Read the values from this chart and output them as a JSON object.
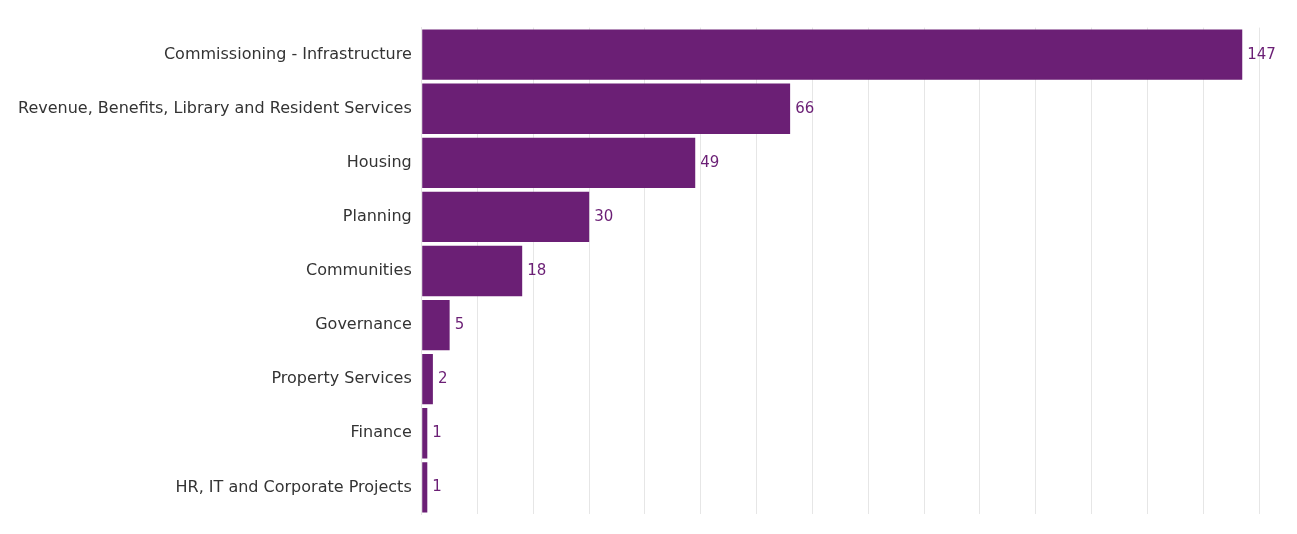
{
  "chart_data": {
    "type": "bar",
    "orientation": "horizontal",
    "categories": [
      "Commissioning - Infrastructure",
      "Revenue, Benefits, Library and Resident Services",
      "Housing",
      "Planning",
      "Communities",
      "Governance",
      "Property Services",
      "Finance",
      "HR, IT and Corporate Projects"
    ],
    "values": [
      147,
      66,
      49,
      30,
      18,
      5,
      2,
      1,
      1
    ],
    "color": "#6b1f75",
    "xlim": [
      0,
      150
    ],
    "xticks": [
      {
        "value": 0,
        "label": null
      },
      {
        "value": 10,
        "label": null
      },
      {
        "value": 20,
        "label": null
      },
      {
        "value": 30,
        "label": null
      },
      {
        "value": 40,
        "label": null
      },
      {
        "value": 50,
        "label": null
      },
      {
        "value": 60,
        "label": null
      },
      {
        "value": 70,
        "label": null
      },
      {
        "value": 80,
        "label": null
      },
      {
        "value": 90,
        "label": null
      },
      {
        "value": 100,
        "label": null
      },
      {
        "value": 110,
        "label": null
      },
      {
        "value": 120,
        "label": null
      },
      {
        "value": 130,
        "label": null
      },
      {
        "value": 140,
        "label": null
      },
      {
        "value": 150,
        "label": null
      }
    ],
    "grid": "x",
    "tick_labels": "y",
    "data_labels": true
  }
}
